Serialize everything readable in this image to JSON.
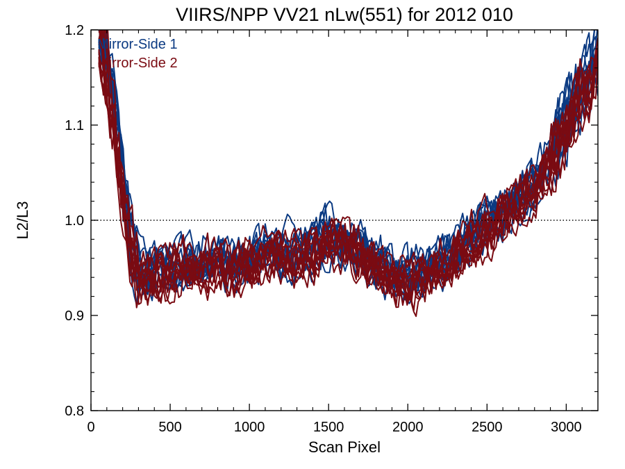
{
  "chart_data": {
    "type": "line",
    "title": "VIIRS/NPP VV21 nLw(551) for 2012 010",
    "xlabel": "Scan Pixel",
    "ylabel": "L2/L3",
    "xlim": [
      0,
      3200
    ],
    "ylim": [
      0.8,
      1.2
    ],
    "xticks": [
      0,
      500,
      1000,
      1500,
      2000,
      2500,
      3000
    ],
    "yticks": [
      0.8,
      0.9,
      1.0,
      1.1,
      1.2
    ],
    "ytick_labels": [
      "0.8",
      "0.9",
      "1.0",
      "1.1",
      "1.2"
    ],
    "reference_line": {
      "y": 1.0,
      "style": "dotted"
    },
    "legend_position": "top-left",
    "series": [
      {
        "name": "Mirror-Side 1",
        "color": "#0b3a82",
        "approx_curve": {
          "x": [
            50,
            100,
            150,
            200,
            250,
            300,
            400,
            500,
            600,
            700,
            800,
            900,
            1000,
            1100,
            1200,
            1300,
            1400,
            1500,
            1600,
            1700,
            1800,
            1900,
            2000,
            2100,
            2200,
            2300,
            2400,
            2500,
            2600,
            2700,
            2800,
            2900,
            3000,
            3100,
            3200
          ],
          "y": [
            1.19,
            1.17,
            1.12,
            1.04,
            0.98,
            0.95,
            0.945,
            0.95,
            0.955,
            0.955,
            0.955,
            0.955,
            0.96,
            0.965,
            0.965,
            0.96,
            0.97,
            0.985,
            0.98,
            0.97,
            0.955,
            0.945,
            0.94,
            0.945,
            0.955,
            0.965,
            0.98,
            0.995,
            1.01,
            1.025,
            1.04,
            1.065,
            1.1,
            1.14,
            1.17
          ]
        }
      },
      {
        "name": "Mirror-Side 2",
        "color": "#7a0b12",
        "approx_curve": {
          "x": [
            50,
            100,
            150,
            200,
            250,
            300,
            400,
            500,
            600,
            700,
            800,
            900,
            1000,
            1100,
            1200,
            1300,
            1400,
            1500,
            1600,
            1700,
            1800,
            1900,
            2000,
            2100,
            2200,
            2300,
            2400,
            2500,
            2600,
            2700,
            2800,
            2900,
            3000,
            3100,
            3200
          ],
          "y": [
            1.19,
            1.16,
            1.1,
            1.03,
            0.97,
            0.94,
            0.94,
            0.945,
            0.95,
            0.95,
            0.95,
            0.95,
            0.955,
            0.96,
            0.965,
            0.96,
            0.965,
            0.98,
            0.975,
            0.965,
            0.95,
            0.94,
            0.935,
            0.94,
            0.95,
            0.96,
            0.975,
            0.99,
            1.005,
            1.02,
            1.035,
            1.06,
            1.095,
            1.135,
            1.16
          ]
        }
      }
    ]
  }
}
